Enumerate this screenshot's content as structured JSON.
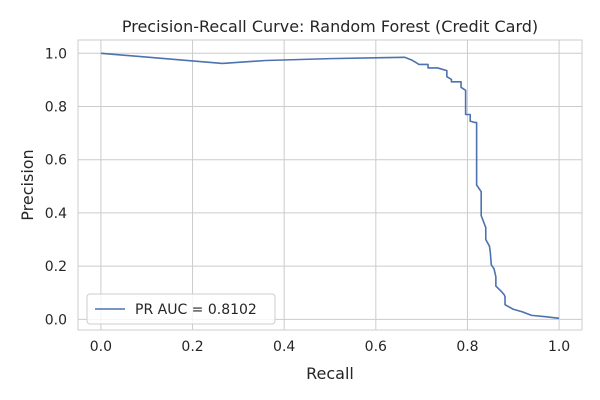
{
  "chart_data": {
    "type": "line",
    "title": "Precision-Recall Curve: Random Forest (Credit Card)",
    "xlabel": "Recall",
    "ylabel": "Precision",
    "xlim": [
      -0.05,
      1.05
    ],
    "ylim": [
      -0.04,
      1.05
    ],
    "xticks": [
      0.0,
      0.2,
      0.4,
      0.6,
      0.8,
      1.0
    ],
    "xtick_labels": [
      "0.0",
      "0.2",
      "0.4",
      "0.6",
      "0.8",
      "1.0"
    ],
    "yticks": [
      0.0,
      0.2,
      0.4,
      0.6,
      0.8,
      1.0
    ],
    "ytick_labels": [
      "0.0",
      "0.2",
      "0.4",
      "0.6",
      "0.8",
      "1.0"
    ],
    "grid": true,
    "legend_position": "lower-left",
    "colors": {
      "series": "#4c72b0",
      "grid": "#cccccc",
      "spine": "#cccccc",
      "text": "#262626"
    },
    "series": [
      {
        "name": "PR AUC = 0.8102",
        "points": [
          [
            0.0,
            1.0
          ],
          [
            0.265,
            0.962
          ],
          [
            0.36,
            0.973
          ],
          [
            0.5,
            0.98
          ],
          [
            0.663,
            0.985
          ],
          [
            0.678,
            0.975
          ],
          [
            0.69,
            0.963
          ],
          [
            0.694,
            0.958
          ],
          [
            0.714,
            0.958
          ],
          [
            0.714,
            0.945
          ],
          [
            0.735,
            0.945
          ],
          [
            0.755,
            0.935
          ],
          [
            0.755,
            0.912
          ],
          [
            0.765,
            0.902
          ],
          [
            0.765,
            0.893
          ],
          [
            0.786,
            0.893
          ],
          [
            0.786,
            0.872
          ],
          [
            0.796,
            0.861
          ],
          [
            0.796,
            0.77
          ],
          [
            0.806,
            0.77
          ],
          [
            0.806,
            0.745
          ],
          [
            0.816,
            0.74
          ],
          [
            0.82,
            0.74
          ],
          [
            0.82,
            0.505
          ],
          [
            0.83,
            0.48
          ],
          [
            0.83,
            0.39
          ],
          [
            0.84,
            0.345
          ],
          [
            0.84,
            0.3
          ],
          [
            0.848,
            0.275
          ],
          [
            0.85,
            0.25
          ],
          [
            0.852,
            0.205
          ],
          [
            0.858,
            0.19
          ],
          [
            0.862,
            0.16
          ],
          [
            0.862,
            0.125
          ],
          [
            0.874,
            0.105
          ],
          [
            0.88,
            0.093
          ],
          [
            0.882,
            0.085
          ],
          [
            0.882,
            0.055
          ],
          [
            0.9,
            0.038
          ],
          [
            0.92,
            0.028
          ],
          [
            0.94,
            0.015
          ],
          [
            0.97,
            0.01
          ],
          [
            1.0,
            0.004
          ]
        ]
      }
    ]
  }
}
